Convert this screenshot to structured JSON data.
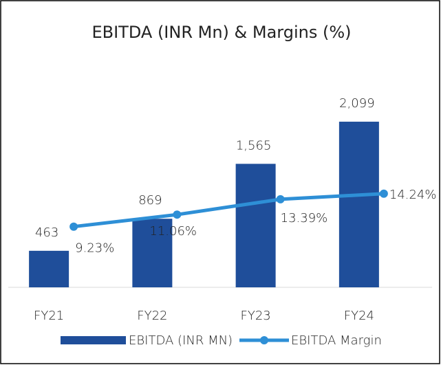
{
  "chart_data": {
    "type": "bar",
    "title": "EBITDA (INR Mn) & Margins (%)",
    "categories": [
      "FY21",
      "FY22",
      "FY23",
      "FY24"
    ],
    "series": [
      {
        "name": "EBITDA (INR MN)",
        "type": "bar",
        "color": "#1f4e9a",
        "values": [
          463,
          869,
          1565,
          2099
        ],
        "value_labels": [
          "463",
          "869",
          "1,565",
          "2,099"
        ]
      },
      {
        "name": "EBITDA Margin",
        "type": "line",
        "axis": "y2",
        "color": "#2e8fd6",
        "values": [
          9.23,
          11.06,
          13.39,
          14.24
        ],
        "value_labels": [
          "9.23%",
          "11.06%",
          "13.39%",
          "14.24%"
        ]
      }
    ],
    "ylim": [
      0,
      2500
    ],
    "y2lim": [
      0,
      30
    ],
    "legend": "bottom"
  }
}
